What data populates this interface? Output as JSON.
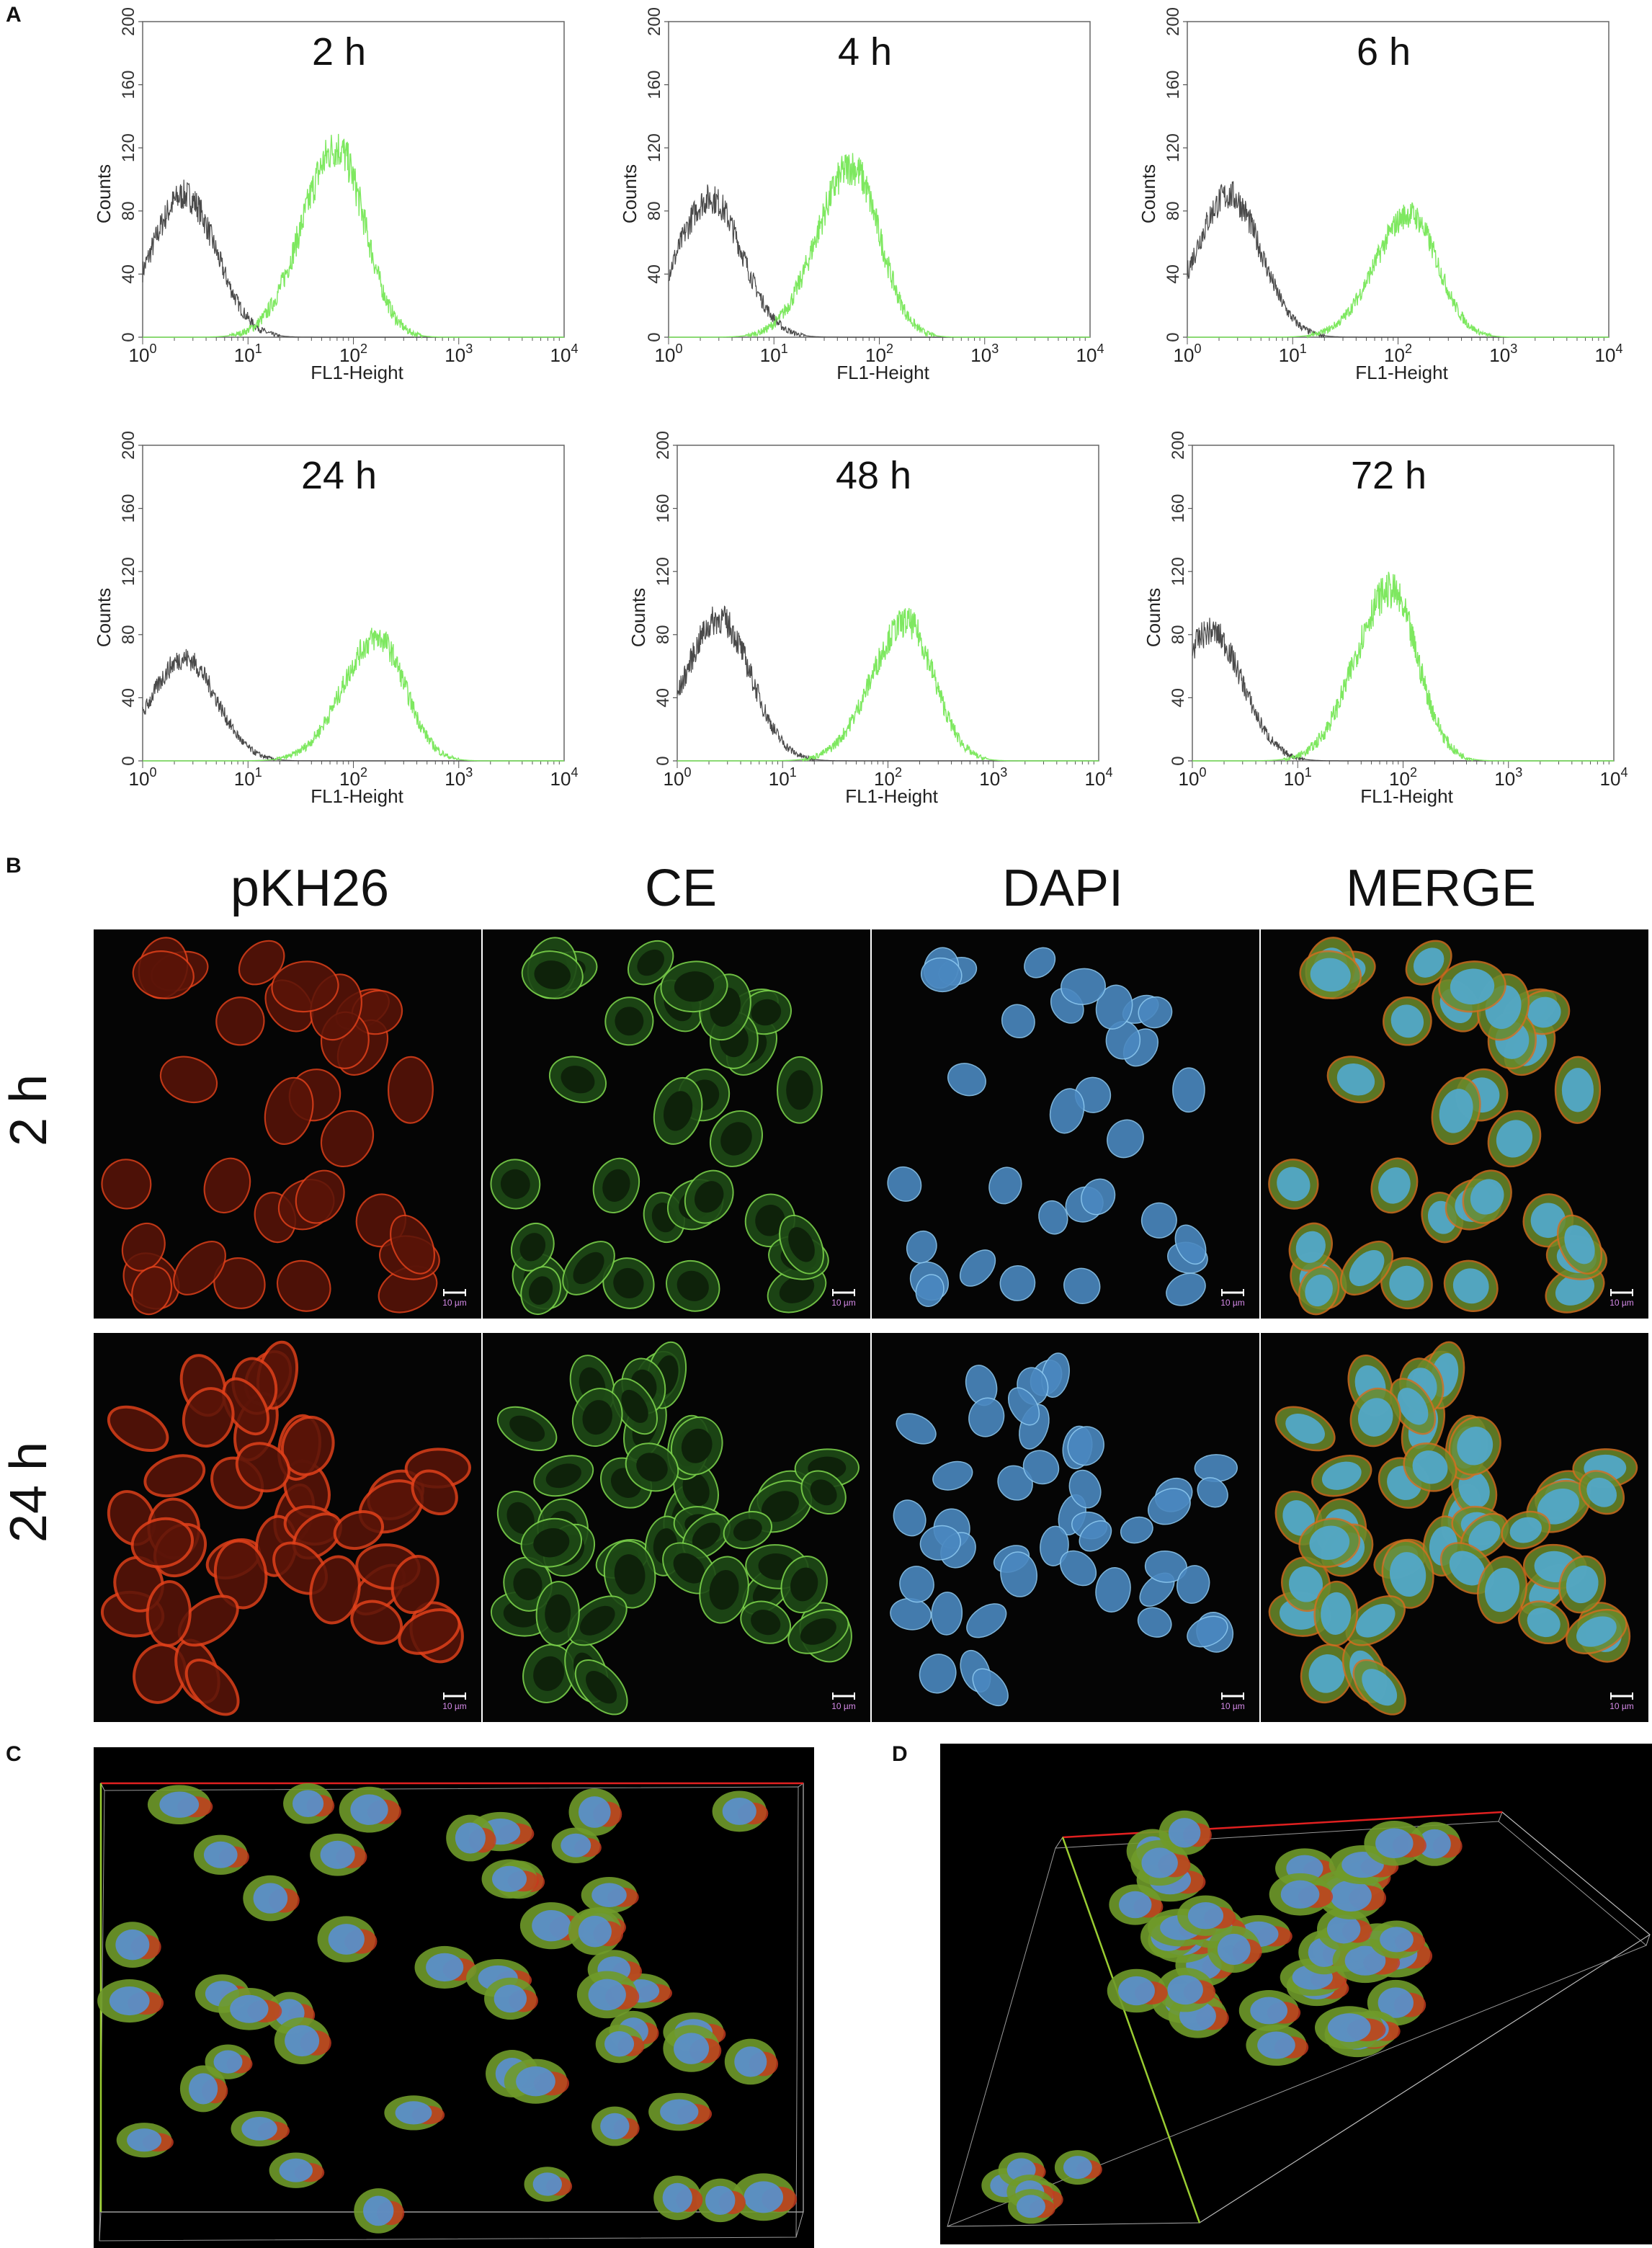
{
  "panels": {
    "A": "A",
    "B": "B",
    "C": "C",
    "D": "D"
  },
  "flow": {
    "xlabel": "FL1-Height",
    "ylabel": "Counts",
    "yticks": [
      "0",
      "40",
      "80",
      "120",
      "160",
      "200"
    ],
    "xticks_base": [
      "10",
      "10",
      "10",
      "10",
      "10"
    ],
    "xticks_exp": [
      "0",
      "1",
      "2",
      "3",
      "4"
    ],
    "colors": {
      "control": "#4a4a4a",
      "treated": "#7ee860"
    }
  },
  "chart_data": [
    {
      "type": "line",
      "title": "2 h",
      "xlabel": "FL1-Height",
      "ylabel": "Counts",
      "x_scale": "log",
      "xlim": [
        1,
        10000
      ],
      "ylim": [
        0,
        200
      ],
      "series": [
        {
          "color": "#4a4a4a",
          "peak_x": 2.5,
          "peak_y": 90
        },
        {
          "color": "#7ee860",
          "peak_x": 70,
          "peak_y": 120
        }
      ]
    },
    {
      "type": "line",
      "title": "4 h",
      "xlabel": "FL1-Height",
      "ylabel": "Counts",
      "x_scale": "log",
      "xlim": [
        1,
        10000
      ],
      "ylim": [
        0,
        200
      ],
      "series": [
        {
          "color": "#4a4a4a",
          "peak_x": 2.5,
          "peak_y": 88
        },
        {
          "color": "#7ee860",
          "peak_x": 55,
          "peak_y": 108
        }
      ]
    },
    {
      "type": "line",
      "title": "6 h",
      "xlabel": "FL1-Height",
      "ylabel": "Counts",
      "x_scale": "log",
      "xlim": [
        1,
        10000
      ],
      "ylim": [
        0,
        200
      ],
      "series": [
        {
          "color": "#4a4a4a",
          "peak_x": 2.5,
          "peak_y": 90
        },
        {
          "color": "#7ee860",
          "peak_x": 130,
          "peak_y": 78
        }
      ]
    },
    {
      "type": "line",
      "title": "24 h",
      "xlabel": "FL1-Height",
      "ylabel": "Counts",
      "x_scale": "log",
      "xlim": [
        1,
        10000
      ],
      "ylim": [
        0,
        200
      ],
      "series": [
        {
          "color": "#4a4a4a",
          "peak_x": 2.5,
          "peak_y": 65
        },
        {
          "color": "#7ee860",
          "peak_x": 170,
          "peak_y": 78
        }
      ]
    },
    {
      "type": "line",
      "title": "48 h",
      "xlabel": "FL1-Height",
      "ylabel": "Counts",
      "x_scale": "log",
      "xlim": [
        1,
        10000
      ],
      "ylim": [
        0,
        200
      ],
      "series": [
        {
          "color": "#4a4a4a",
          "peak_x": 2.5,
          "peak_y": 90
        },
        {
          "color": "#7ee860",
          "peak_x": 150,
          "peak_y": 88
        }
      ]
    },
    {
      "type": "line",
      "title": "72 h",
      "xlabel": "FL1-Height",
      "ylabel": "Counts",
      "x_scale": "log",
      "xlim": [
        1,
        10000
      ],
      "ylim": [
        0,
        200
      ],
      "series": [
        {
          "color": "#4a4a4a",
          "peak_x": 1.5,
          "peak_y": 82
        },
        {
          "color": "#7ee860",
          "peak_x": 75,
          "peak_y": 108
        }
      ]
    }
  ],
  "microscopy": {
    "columns": [
      "pKH26",
      "CE",
      "DAPI",
      "MERGE"
    ],
    "rows": [
      "2 h",
      "24 h"
    ],
    "scale_bar": "10 µm"
  }
}
